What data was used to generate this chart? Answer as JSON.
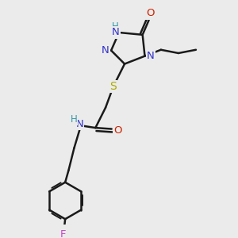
{
  "bg_color": "#ebebeb",
  "bond_color": "#1a1a1a",
  "colors": {
    "N": "#3333cc",
    "O": "#cc2200",
    "S": "#aaaa00",
    "F": "#cc44cc",
    "C": "#1a1a1a",
    "H": "#3399aa"
  }
}
